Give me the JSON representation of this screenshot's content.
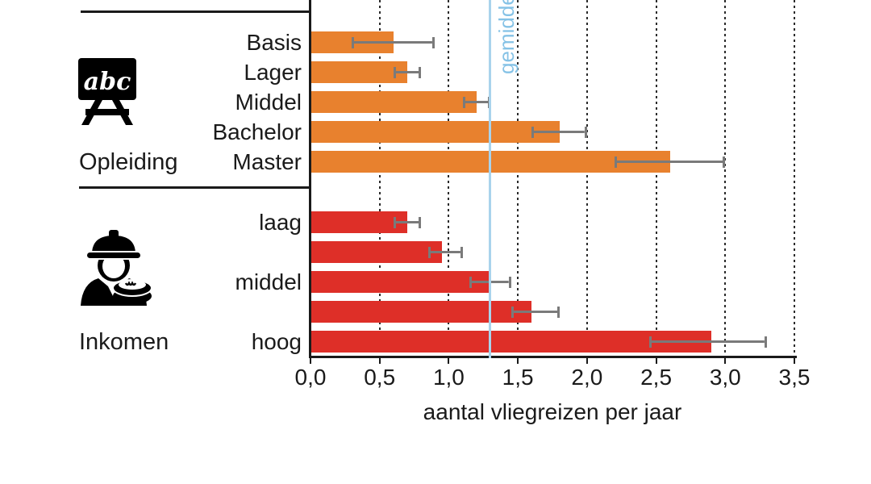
{
  "chart_data": {
    "type": "bar",
    "orientation": "horizontal",
    "title": "",
    "xlabel": "aantal vliegreizen per jaar",
    "ylabel": "",
    "xlim": [
      0,
      3.5
    ],
    "grid": "dotted vertical gridlines every 0.5",
    "xticks": [
      {
        "value": 0.0,
        "label": "0,0"
      },
      {
        "value": 0.5,
        "label": "0,5"
      },
      {
        "value": 1.0,
        "label": "1,0"
      },
      {
        "value": 1.5,
        "label": "1,5"
      },
      {
        "value": 2.0,
        "label": "2,0"
      },
      {
        "value": 2.5,
        "label": "2,5"
      },
      {
        "value": 3.0,
        "label": "3,0"
      },
      {
        "value": 3.5,
        "label": "3,5"
      }
    ],
    "reference_line": {
      "value": 1.3,
      "label": "gemiddelde",
      "line_color": "#A9D3EC",
      "text_color": "#85C2E6"
    },
    "error_bar_color": "#7A7A7A",
    "groups": [
      {
        "name": "Opleiding",
        "icon": "chalkboard-abc-icon",
        "bar_color": "#E8812E",
        "bars": [
          {
            "label": "Basis",
            "value": 0.6,
            "ci_low": 0.3,
            "ci_high": 0.9
          },
          {
            "label": "Lager",
            "value": 0.7,
            "ci_low": 0.6,
            "ci_high": 0.8
          },
          {
            "label": "Middel",
            "value": 1.2,
            "ci_low": 1.1,
            "ci_high": 1.3
          },
          {
            "label": "Bachelor",
            "value": 1.8,
            "ci_low": 1.6,
            "ci_high": 2.0
          },
          {
            "label": "Master",
            "value": 2.6,
            "ci_low": 2.2,
            "ci_high": 3.0
          }
        ]
      },
      {
        "name": "Inkomen",
        "icon": "worker-income-icon",
        "bar_color": "#DE2F28",
        "bars": [
          {
            "label": "laag",
            "value": 0.7,
            "ci_low": 0.6,
            "ci_high": 0.8
          },
          {
            "label": "",
            "value": 0.95,
            "ci_low": 0.85,
            "ci_high": 1.1
          },
          {
            "label": "middel",
            "value": 1.3,
            "ci_low": 1.15,
            "ci_high": 1.45
          },
          {
            "label": "",
            "value": 1.6,
            "ci_low": 1.45,
            "ci_high": 1.8
          },
          {
            "label": "hoog",
            "value": 2.9,
            "ci_low": 2.45,
            "ci_high": 3.3
          }
        ]
      }
    ]
  },
  "icons": {
    "chalkboard_text": "abc"
  }
}
